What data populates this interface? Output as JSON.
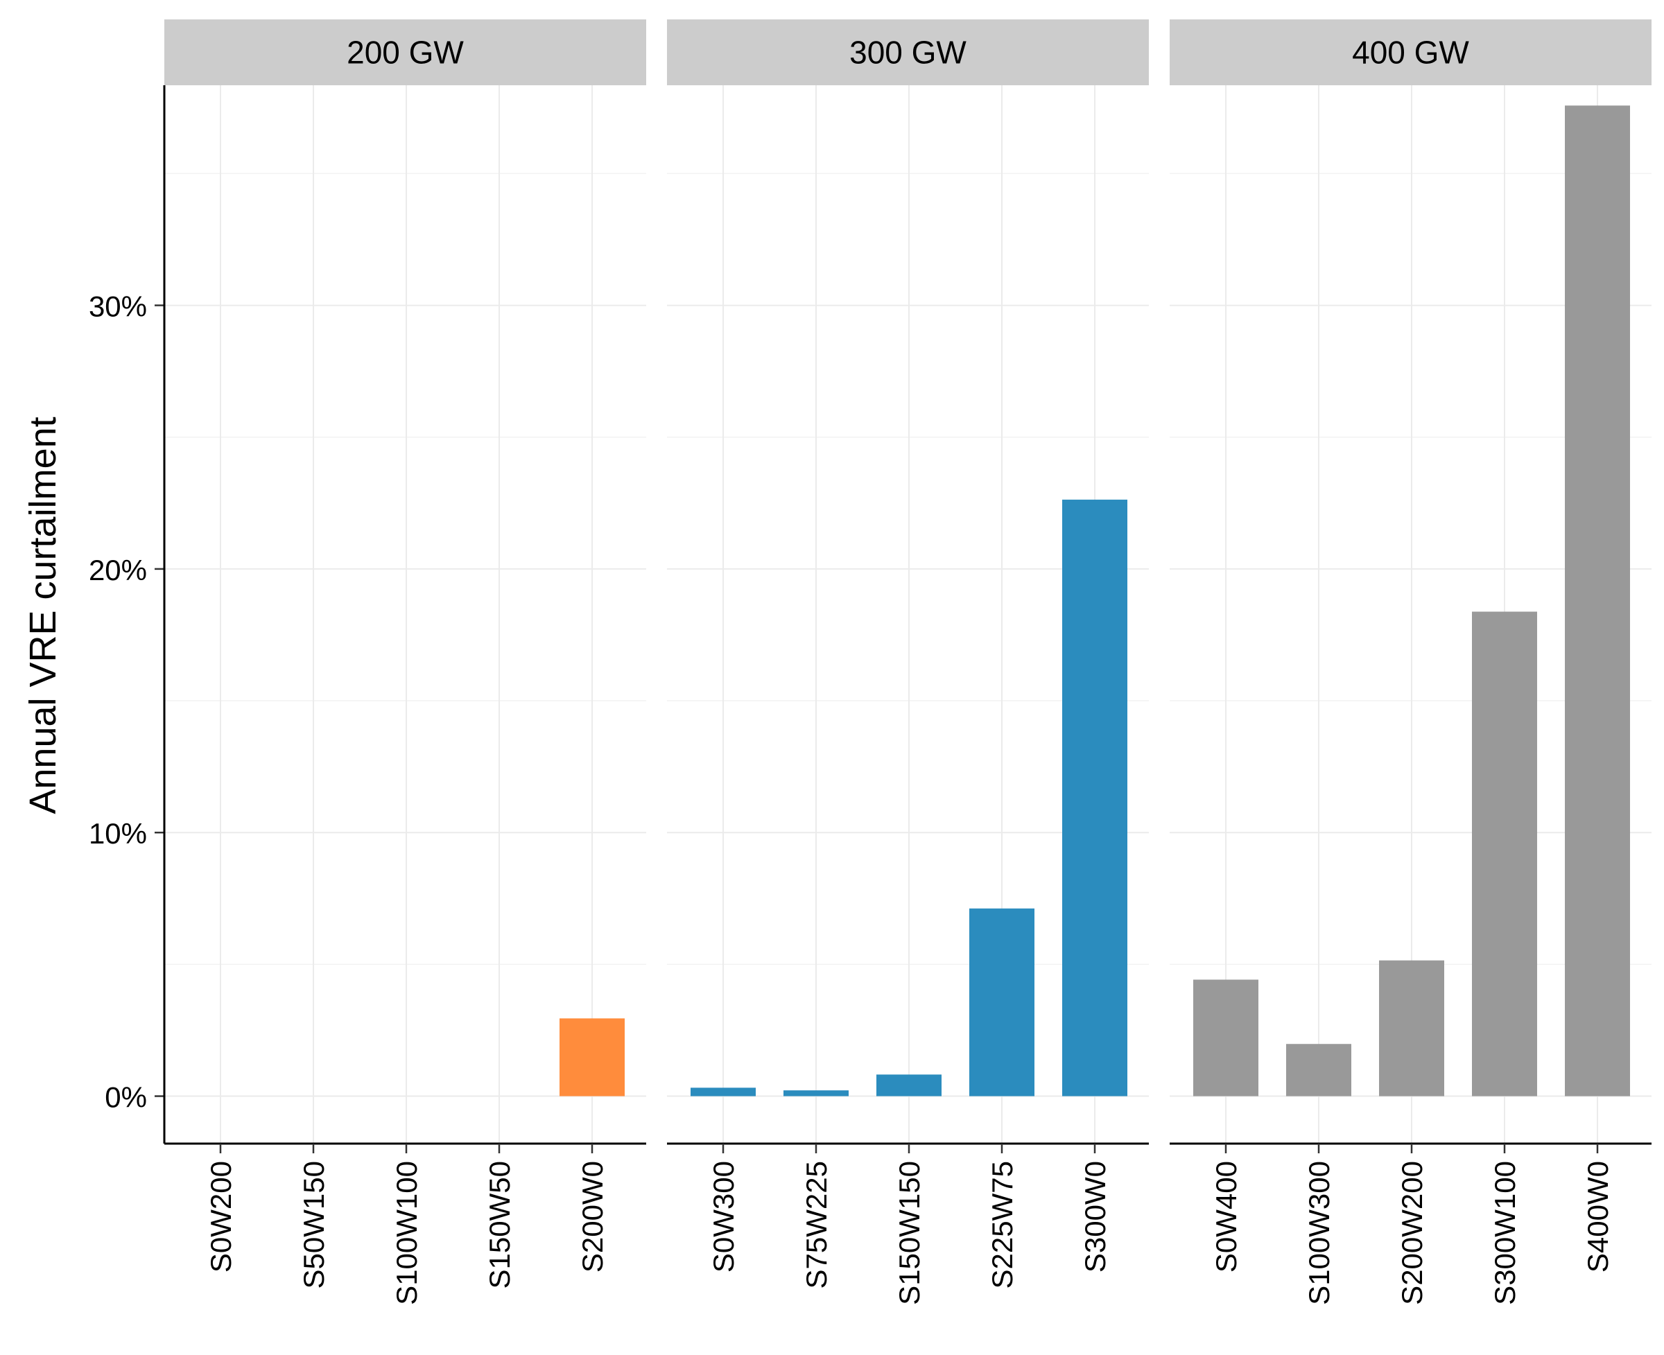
{
  "chart_data": {
    "type": "bar",
    "ylabel": "Annual VRE curtailment",
    "ylim": [
      -0.018,
      0.3835
    ],
    "yticks": [
      0,
      0.1,
      0.2,
      0.3
    ],
    "ytick_labels": [
      "0%",
      "10%",
      "20%",
      "30%"
    ],
    "grid": true,
    "facets": [
      {
        "label": "200 GW",
        "color": "#FF8C3C",
        "categories": [
          "S0W200",
          "S50W150",
          "S100W100",
          "S150W50",
          "S200W0"
        ],
        "values": [
          0,
          0,
          0,
          0,
          0.0295
        ]
      },
      {
        "label": "300 GW",
        "color": "#2B8CBE",
        "categories": [
          "S0W300",
          "S75W225",
          "S150W150",
          "S225W75",
          "S300W0"
        ],
        "values": [
          0.0032,
          0.0022,
          0.0082,
          0.0712,
          0.2263
        ]
      },
      {
        "label": "400 GW",
        "color": "#999999",
        "categories": [
          "S0W400",
          "S100W300",
          "S200W200",
          "S300W100",
          "S400W0"
        ],
        "values": [
          0.0442,
          0.0198,
          0.0515,
          0.1838,
          0.3758
        ]
      }
    ]
  }
}
